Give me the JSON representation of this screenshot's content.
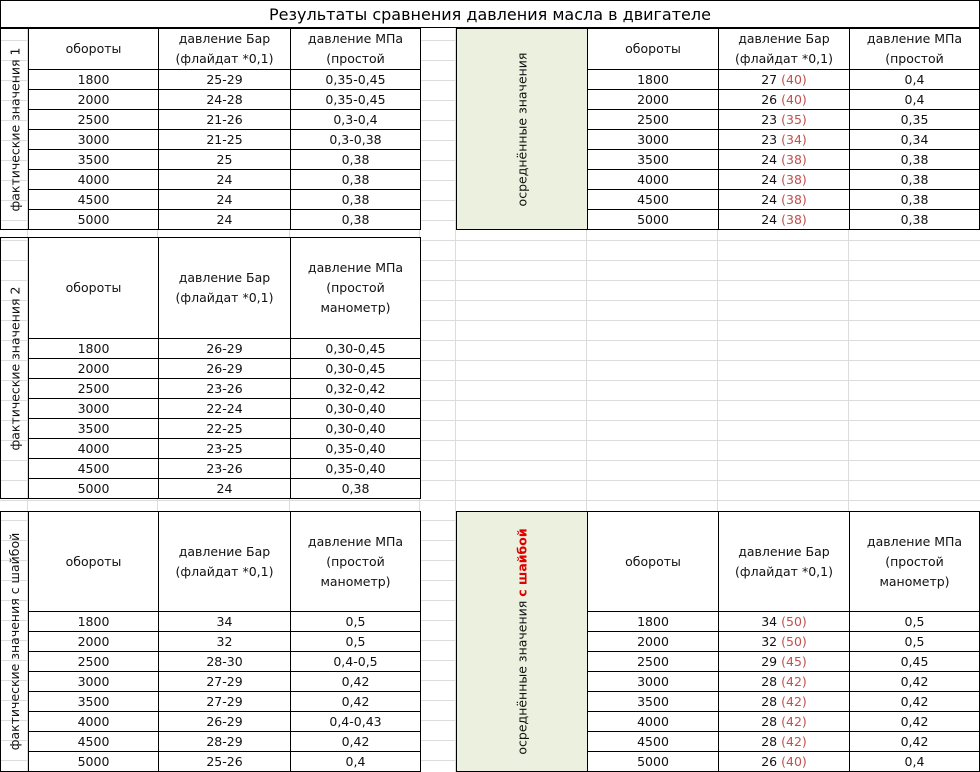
{
  "title": "Результаты сравнения  давления масла в двигателе",
  "colors": {
    "green_label_bg": "#ebf1de",
    "old_value_red": "#c0504d",
    "washer_red": "#e00000"
  },
  "blocks": [
    {
      "label": "фактические значения 1",
      "headers": [
        "обороты",
        "давление Бар\n(флайдат *0,1)",
        "давление МПа\n(простой"
      ],
      "rows": [
        [
          "1800",
          "25-29",
          "0,35-0,45"
        ],
        [
          "2000",
          "24-28",
          "0,35-0,45"
        ],
        [
          "2500",
          "21-26",
          "0,3-0,4"
        ],
        [
          "3000",
          "21-25",
          "0,3-0,38"
        ],
        [
          "3500",
          "25",
          "0,38"
        ],
        [
          "4000",
          "24",
          "0,38"
        ],
        [
          "4500",
          "24",
          "0,38"
        ],
        [
          "5000",
          "24",
          "0,38"
        ]
      ]
    },
    {
      "label": "фактические значения 2",
      "headers": [
        "обороты",
        "давление Бар\n(флайдат *0,1)",
        "давление МПа\n(простой\nманометр)"
      ],
      "rows": [
        [
          "1800",
          "26-29",
          "0,30-0,45"
        ],
        [
          "2000",
          "26-29",
          "0,30-0,45"
        ],
        [
          "2500",
          "23-26",
          "0,32-0,42"
        ],
        [
          "3000",
          "22-24",
          "0,30-0,40"
        ],
        [
          "3500",
          "22-25",
          "0,30-0,40"
        ],
        [
          "4000",
          "23-25",
          "0,35-0,40"
        ],
        [
          "4500",
          "23-26",
          "0,35-0,40"
        ],
        [
          "5000",
          "24",
          "0,38"
        ]
      ]
    },
    {
      "label": "фактические значения с шайбой",
      "headers": [
        "обороты",
        "давление Бар\n(флайдат *0,1)",
        "давление МПа\n(простой\nманометр)"
      ],
      "rows": [
        [
          "1800",
          "34",
          "0,5"
        ],
        [
          "2000",
          "32",
          "0,5"
        ],
        [
          "2500",
          "28-30",
          "0,4-0,5"
        ],
        [
          "3000",
          "27-29",
          "0,42"
        ],
        [
          "3500",
          "27-29",
          "0,42"
        ],
        [
          "4000",
          "26-29",
          "0,4-0,43"
        ],
        [
          "4500",
          "28-29",
          "0,42"
        ],
        [
          "5000",
          "25-26",
          "0,4"
        ]
      ]
    }
  ],
  "averaged": [
    {
      "label": "осреднённые значения",
      "label_emph": "",
      "headers": [
        "обороты",
        "давление Бар\n(флайдат *0,1)",
        "давление МПа\n(простой"
      ],
      "rows": [
        [
          "1800",
          "27",
          "(40)",
          "0,4"
        ],
        [
          "2000",
          "26",
          "(40)",
          "0,4"
        ],
        [
          "2500",
          "23",
          "(35)",
          "0,35"
        ],
        [
          "3000",
          "23",
          "(34)",
          "0,34"
        ],
        [
          "3500",
          "24",
          "(38)",
          "0,38"
        ],
        [
          "4000",
          "24",
          "(38)",
          "0,38"
        ],
        [
          "4500",
          "24",
          "(38)",
          "0,38"
        ],
        [
          "5000",
          "24",
          "(38)",
          "0,38"
        ]
      ]
    },
    {
      "label": "осреднённые значения   ",
      "label_emph": "с шайбой",
      "headers": [
        "обороты",
        "давление Бар\n(флайдат *0,1)",
        "давление МПа\n(простой\nманометр)"
      ],
      "rows": [
        [
          "1800",
          "34",
          "(50)",
          "0,5"
        ],
        [
          "2000",
          "32",
          "(50)",
          "0,5"
        ],
        [
          "2500",
          "29",
          "(45)",
          "0,45"
        ],
        [
          "3000",
          "28",
          "(42)",
          "0,42"
        ],
        [
          "3500",
          "28",
          "(42)",
          "0,42"
        ],
        [
          "4000",
          "28",
          "(42)",
          "0,42"
        ],
        [
          "4500",
          "28",
          "(42)",
          "0,42"
        ],
        [
          "5000",
          "26",
          "(40)",
          "0,4"
        ]
      ]
    }
  ]
}
